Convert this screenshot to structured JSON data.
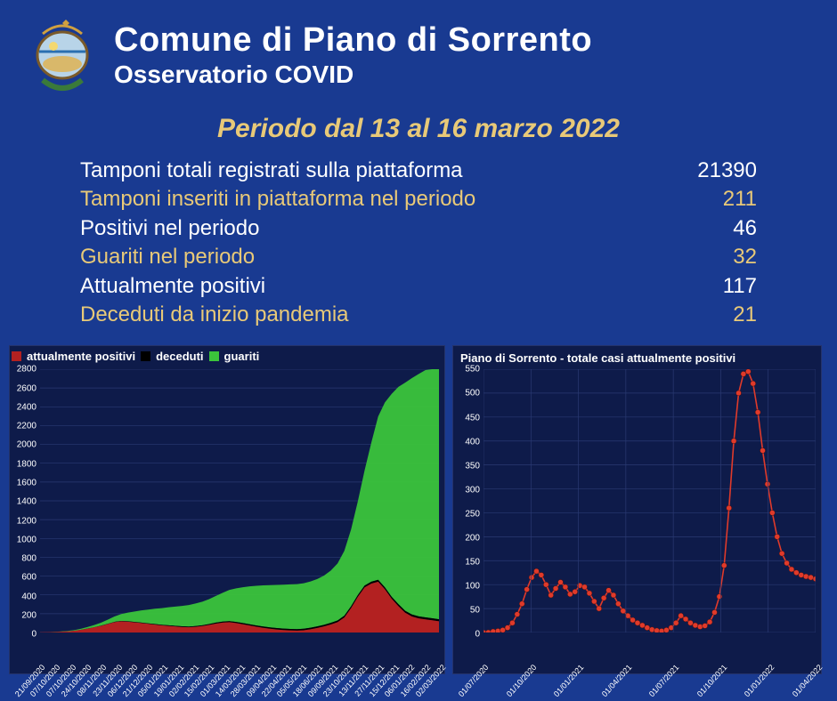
{
  "header": {
    "title": "Comune di Piano di Sorrento",
    "subtitle": "Osservatorio COVID"
  },
  "period_label": "Periodo dal 13 al 16 marzo 2022",
  "stats": [
    {
      "label": "Tamponi totali registrati sulla piattaforma",
      "value": "21390",
      "alt": false
    },
    {
      "label": "Tamponi inseriti in piattaforma nel periodo",
      "value": "211",
      "alt": true
    },
    {
      "label": "Positivi nel periodo",
      "value": "46",
      "alt": false
    },
    {
      "label": "Guariti nel periodo",
      "value": "32",
      "alt": true
    },
    {
      "label": "Attualmente positivi",
      "value": "117",
      "alt": false
    },
    {
      "label": "Deceduti da inizio pandemia",
      "value": "21",
      "alt": true
    }
  ],
  "colors": {
    "background": "#193a91",
    "accent": "#e8c978",
    "chart_bg": "#0e1b4a",
    "grid": "#2a3a73",
    "positivi": "#b32121",
    "deceduti": "#000000",
    "guariti": "#3bc43b",
    "line": "#e03a2a"
  },
  "left_chart": {
    "type": "stacked-area",
    "legend": [
      {
        "label": "attualmente positivi",
        "color": "#b32121"
      },
      {
        "label": "deceduti",
        "color": "#000000"
      },
      {
        "label": "guariti",
        "color": "#3bc43b"
      }
    ],
    "ylim": [
      0,
      2800
    ],
    "ytick_step": 200,
    "x_labels": [
      "21/09/2020",
      "07/10/2020",
      "07/10/2020",
      "24/10/2020",
      "08/11/2020",
      "23/11/2020",
      "06/12/2020",
      "21/12/2020",
      "05/01/2021",
      "19/01/2021",
      "02/02/2021",
      "15/02/2021",
      "01/03/2021",
      "14/03/2021",
      "28/03/2021",
      "09/04/2021",
      "22/04/2021",
      "05/05/2021",
      "18/06/2021",
      "09/09/2021",
      "23/10/2021",
      "13/11/2021",
      "27/11/2021",
      "15/12/2021",
      "06/01/2022",
      "16/02/2022",
      "02/03/2022"
    ],
    "n": 60,
    "positivi": [
      2,
      3,
      5,
      8,
      12,
      18,
      28,
      40,
      55,
      70,
      90,
      110,
      120,
      115,
      108,
      100,
      92,
      84,
      76,
      70,
      64,
      58,
      55,
      60,
      68,
      80,
      95,
      105,
      110,
      100,
      88,
      74,
      62,
      50,
      40,
      32,
      26,
      22,
      20,
      24,
      34,
      48,
      65,
      85,
      110,
      160,
      260,
      380,
      480,
      520,
      540,
      460,
      360,
      280,
      210,
      170,
      150,
      140,
      130,
      120
    ],
    "deceduti": [
      0,
      0,
      0,
      0,
      0,
      0,
      0,
      1,
      1,
      2,
      2,
      3,
      3,
      4,
      4,
      5,
      5,
      6,
      6,
      7,
      7,
      8,
      8,
      9,
      9,
      10,
      10,
      11,
      11,
      12,
      12,
      13,
      13,
      14,
      14,
      15,
      15,
      16,
      16,
      16,
      17,
      17,
      17,
      18,
      18,
      18,
      19,
      19,
      19,
      20,
      20,
      20,
      20,
      21,
      21,
      21,
      21,
      21,
      21,
      21
    ],
    "guariti": [
      0,
      1,
      2,
      4,
      7,
      11,
      18,
      26,
      36,
      50,
      68,
      90,
      115,
      145,
      175,
      205,
      230,
      255,
      278,
      300,
      320,
      340,
      358,
      375,
      392,
      415,
      445,
      480,
      520,
      560,
      598,
      632,
      660,
      685,
      705,
      720,
      732,
      742,
      750,
      758,
      770,
      790,
      820,
      870,
      950,
      1080,
      1280,
      1560,
      1920,
      2320,
      2720,
      3080,
      3380,
      3620,
      3800,
      3940,
      4040,
      4120,
      4180,
      4230
    ],
    "guariti_scaled_to": 2700
  },
  "right_chart": {
    "type": "line",
    "title": "Piano di Sorrento - totale casi attualmente positivi",
    "ylim": [
      0,
      550
    ],
    "ytick_step": 50,
    "x_labels": [
      "01/07/2020",
      "01/10/2020",
      "01/01/2021",
      "01/04/2021",
      "01/07/2021",
      "01/10/2021",
      "01/01/2022",
      "01/04/2022"
    ],
    "color": "#e03a2a",
    "marker": "circle",
    "marker_size": 3,
    "n": 70,
    "values": [
      0,
      0,
      2,
      3,
      5,
      10,
      20,
      38,
      60,
      90,
      115,
      128,
      120,
      100,
      78,
      92,
      105,
      95,
      80,
      85,
      98,
      95,
      82,
      65,
      50,
      72,
      88,
      78,
      60,
      45,
      35,
      26,
      20,
      15,
      10,
      6,
      4,
      3,
      5,
      10,
      20,
      35,
      28,
      20,
      15,
      12,
      14,
      22,
      42,
      75,
      140,
      260,
      400,
      500,
      540,
      545,
      520,
      460,
      380,
      310,
      250,
      200,
      165,
      145,
      132,
      125,
      120,
      117,
      115,
      112
    ]
  }
}
